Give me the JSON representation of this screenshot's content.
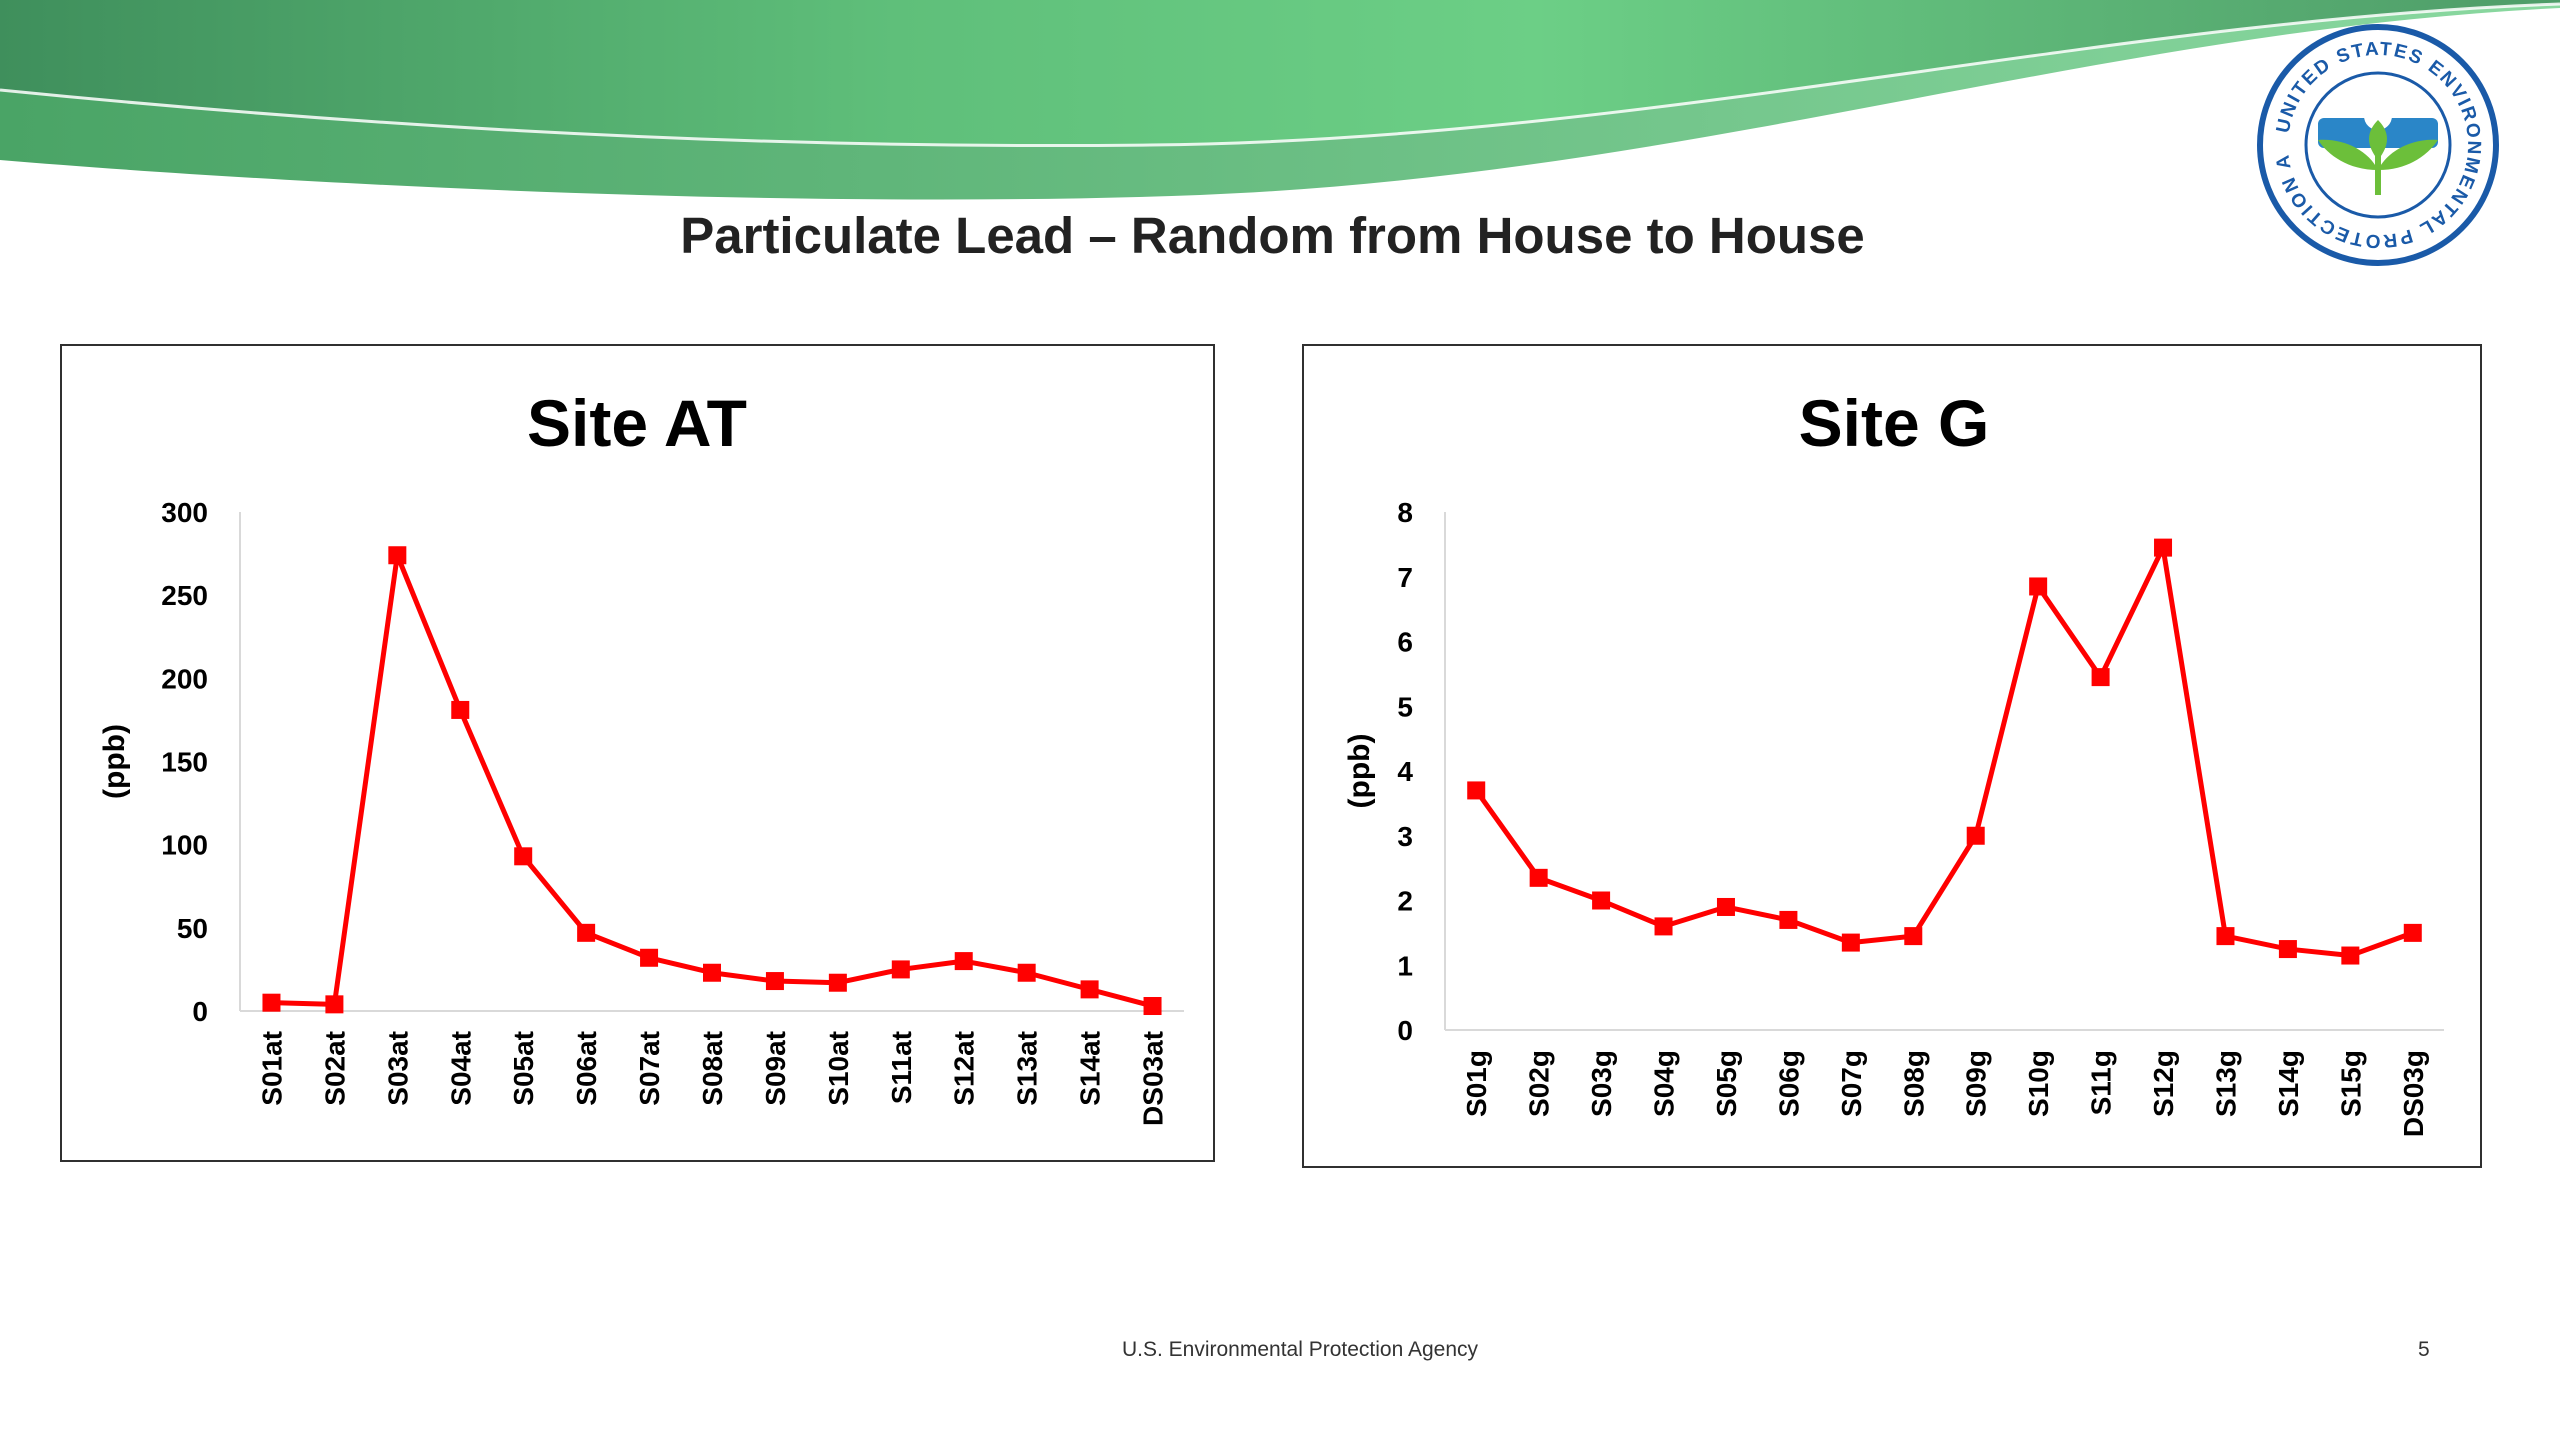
{
  "slide": {
    "title": "Particulate Lead – Random from House to House",
    "footer": "U.S. Environmental Protection Agency",
    "page_number": "5",
    "logo": {
      "text": "UNITED STATES ENVIRONMENTAL PROTECTION AGENCY",
      "colors": {
        "ring": "#1a5aa8",
        "leaf": "#6cbf3a",
        "water": "#2a86c8"
      }
    },
    "banner_colors": {
      "dark": "#3f8f5c",
      "light": "#6ccf86"
    }
  },
  "chart_data": [
    {
      "type": "line",
      "title": "Site AT",
      "ylabel": "(ppb)",
      "xlabel": "",
      "ylim": [
        0,
        300
      ],
      "yticks": [
        0,
        50,
        100,
        150,
        200,
        250,
        300
      ],
      "categories": [
        "S01at",
        "S02at",
        "S03at",
        "S04at",
        "S05at",
        "S06at",
        "S07at",
        "S08at",
        "S09at",
        "S10at",
        "S11at",
        "S12at",
        "S13at",
        "S14at",
        "DS03at"
      ],
      "series": [
        {
          "color": "#ff0000",
          "marker": "square",
          "values": [
            5,
            4,
            274,
            181,
            93,
            47,
            32,
            23,
            18,
            17,
            25,
            30,
            23,
            13,
            3
          ]
        }
      ],
      "grid": false,
      "legend": "none"
    },
    {
      "type": "line",
      "title": "Site G",
      "ylabel": "(ppb)",
      "xlabel": "",
      "ylim": [
        0,
        8
      ],
      "yticks": [
        0,
        1,
        2,
        3,
        4,
        5,
        6,
        7,
        8
      ],
      "categories": [
        "S01g",
        "S02g",
        "S03g",
        "S04g",
        "S05g",
        "S06g",
        "S07g",
        "S08g",
        "S09g",
        "S10g",
        "S11g",
        "S12g",
        "S13g",
        "S14g",
        "S15g",
        "DS03g"
      ],
      "series": [
        {
          "color": "#ff0000",
          "marker": "square",
          "values": [
            3.7,
            2.35,
            2.0,
            1.6,
            1.9,
            1.7,
            1.35,
            1.45,
            3.0,
            6.85,
            5.45,
            7.45,
            1.45,
            1.25,
            1.15,
            1.5
          ]
        }
      ],
      "grid": false,
      "legend": "none"
    }
  ]
}
